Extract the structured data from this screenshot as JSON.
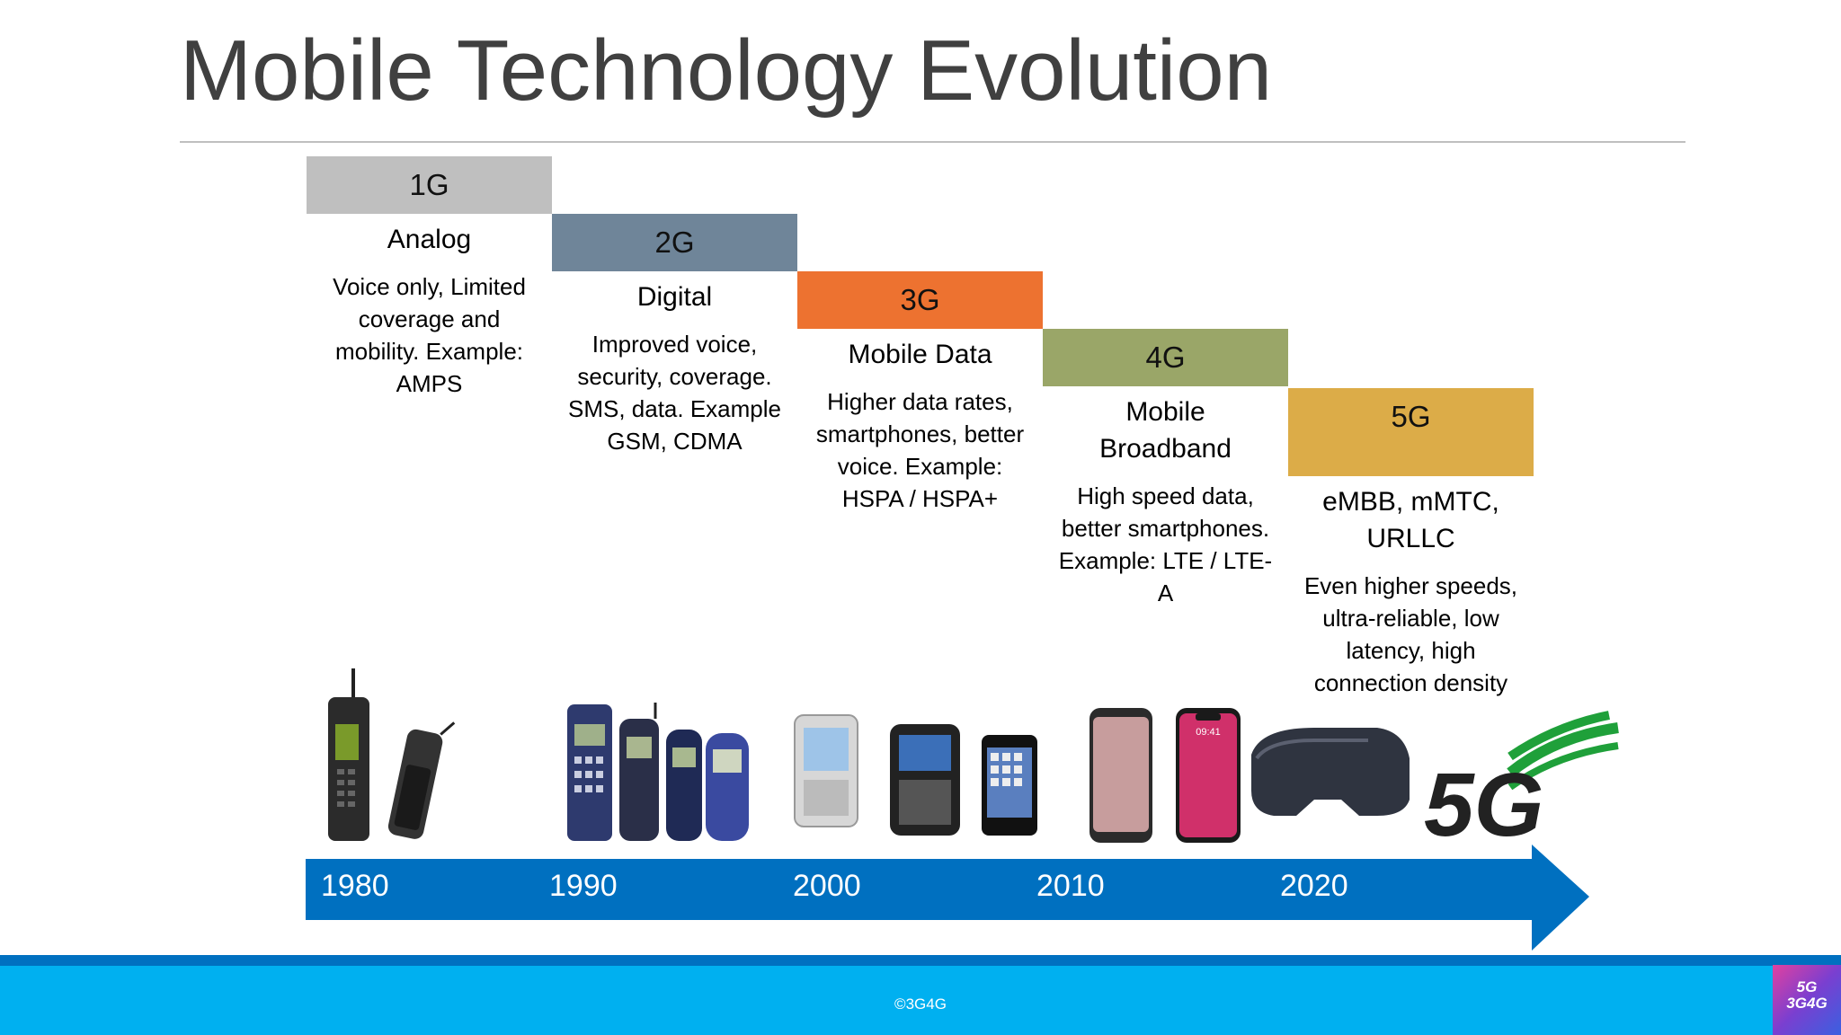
{
  "title": "Mobile Technology Evolution",
  "generations": [
    {
      "badge": "1G",
      "name": "Analog",
      "desc": "Voice only, Limited coverage and mobility. Example: AMPS",
      "color": "#bfbfbf"
    },
    {
      "badge": "2G",
      "name": "Digital",
      "desc": "Improved voice, security, coverage. SMS, data. Example GSM, CDMA",
      "color": "#6f8599"
    },
    {
      "badge": "3G",
      "name": "Mobile Data",
      "desc": "Higher data rates, smartphones, better voice. Example: HSPA / HSPA+",
      "color": "#ed7230"
    },
    {
      "badge": "4G",
      "name": "Mobile Broadband",
      "desc": "High speed data, better smartphones. Example: LTE / LTE-A",
      "color": "#9aa668"
    },
    {
      "badge": "5G",
      "name": "eMBB, mMTC, URLLC",
      "desc": "Even higher speeds, ultra-reliable, low latency, high connection density",
      "color": "#dcac48"
    }
  ],
  "timeline": {
    "years": [
      "1980",
      "1990",
      "2000",
      "2010",
      "2020"
    ],
    "color": "#0070c0"
  },
  "images": {
    "g1": "1G brick phones",
    "g2": "2G feature phones",
    "g3": "3G early smartphones",
    "g4": "4G smartphones",
    "g5_vr": "VR headset",
    "g5_logo_text": "5G"
  },
  "footer": {
    "copyright": "©3G4G",
    "logo_top": "5G",
    "logo_bottom": "3G4G"
  }
}
